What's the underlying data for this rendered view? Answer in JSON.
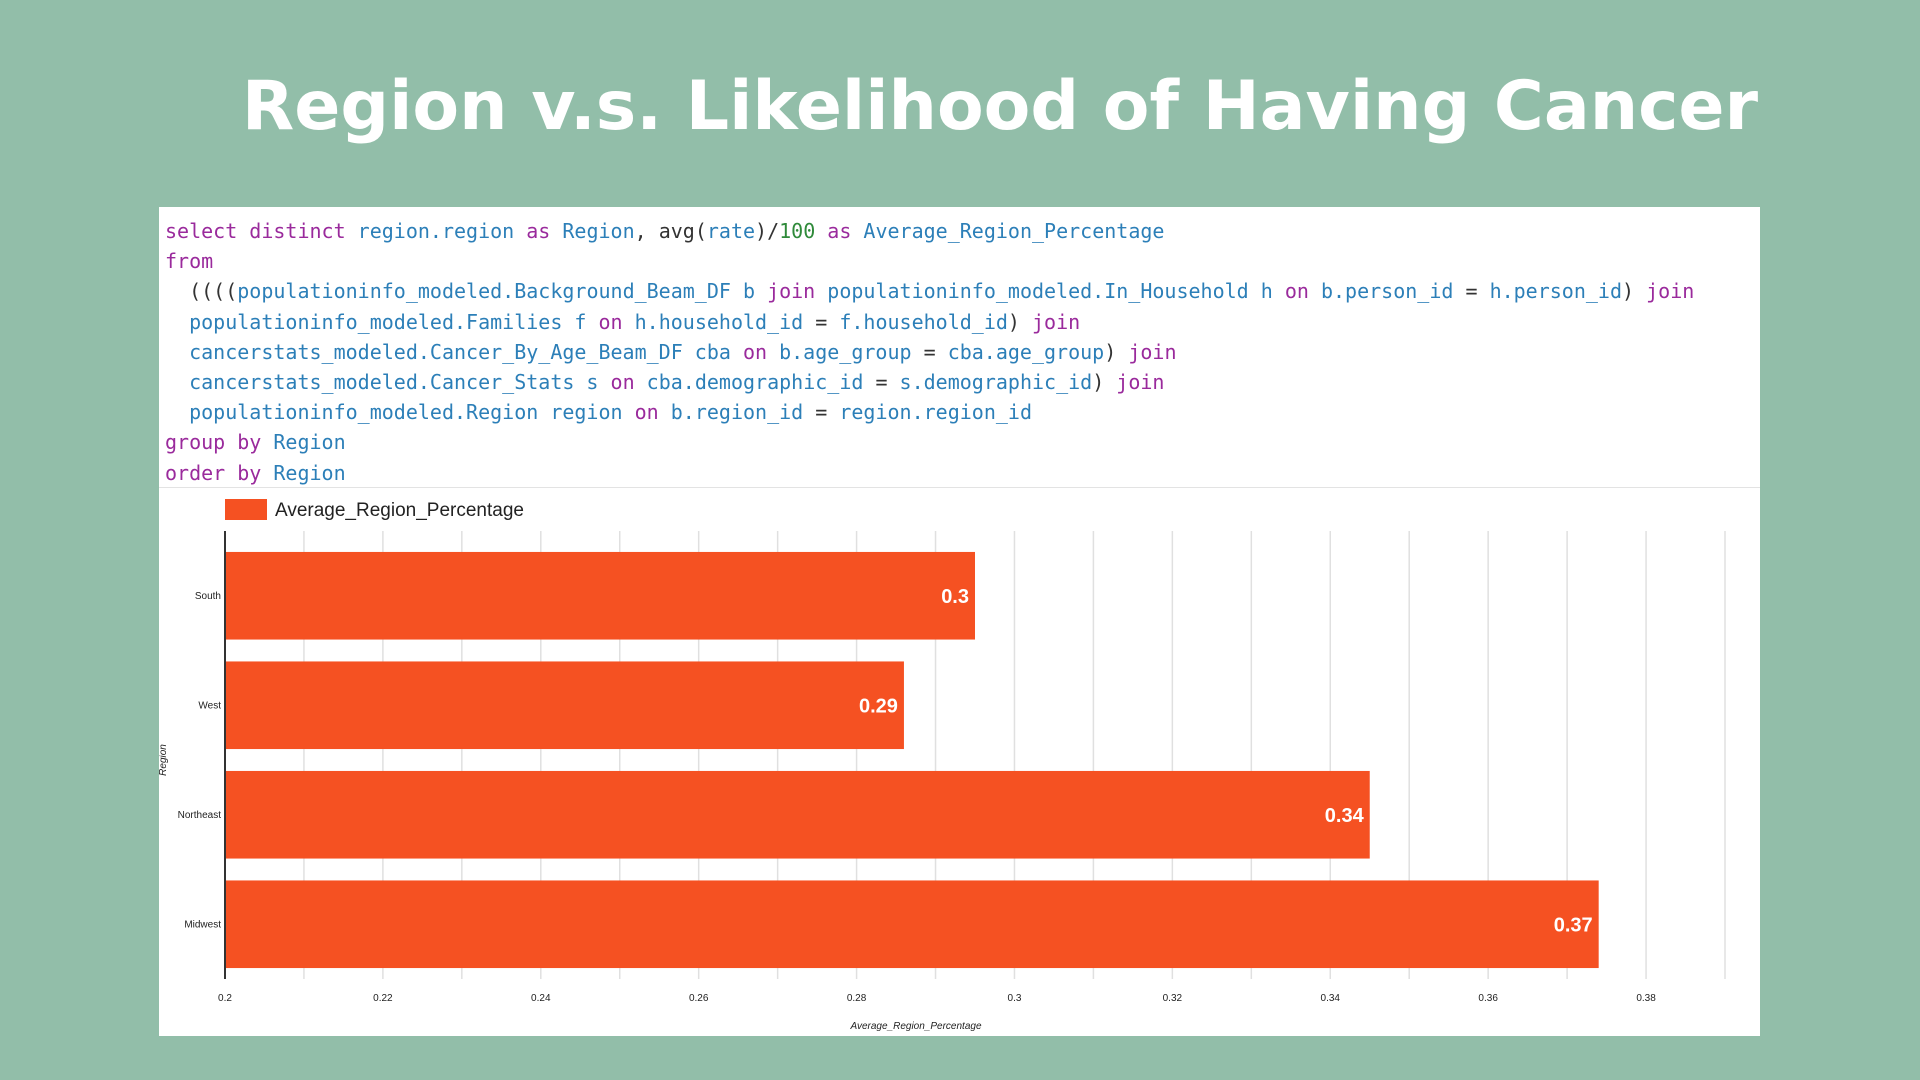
{
  "title": "Region v.s. Likelihood of Having Cancer",
  "colors": {
    "background": "#92bea9",
    "bar": "#f55122",
    "keyword": "#9a2a9c",
    "identifier": "#2c7fb8",
    "number": "#2f8a3a"
  },
  "sql_lines": [
    [
      {
        "t": "select distinct ",
        "c": "kw"
      },
      {
        "t": "region.region ",
        "c": "id"
      },
      {
        "t": "as ",
        "c": "kw"
      },
      {
        "t": "Region",
        "c": "id"
      },
      {
        "t": ", avg(",
        "c": "pl"
      },
      {
        "t": "rate",
        "c": "id"
      },
      {
        "t": ")/",
        "c": "pl"
      },
      {
        "t": "100 ",
        "c": "num"
      },
      {
        "t": "as ",
        "c": "kw"
      },
      {
        "t": "Average_Region_Percentage",
        "c": "id"
      }
    ],
    [
      {
        "t": "from",
        "c": "kw"
      }
    ],
    [
      {
        "t": "  ((((",
        "c": "pl"
      },
      {
        "t": "populationinfo_modeled.Background_Beam_DF b ",
        "c": "id"
      },
      {
        "t": "join ",
        "c": "kw"
      },
      {
        "t": "populationinfo_modeled.In_Household h ",
        "c": "id"
      },
      {
        "t": "on ",
        "c": "kw"
      },
      {
        "t": "b.person_id ",
        "c": "id"
      },
      {
        "t": "= ",
        "c": "pl"
      },
      {
        "t": "h.person_id",
        "c": "id"
      },
      {
        "t": ") ",
        "c": "pl"
      },
      {
        "t": "join",
        "c": "kw"
      }
    ],
    [
      {
        "t": "  populationinfo_modeled.Families f ",
        "c": "id"
      },
      {
        "t": "on ",
        "c": "kw"
      },
      {
        "t": "h.household_id ",
        "c": "id"
      },
      {
        "t": "= ",
        "c": "pl"
      },
      {
        "t": "f.household_id",
        "c": "id"
      },
      {
        "t": ") ",
        "c": "pl"
      },
      {
        "t": "join",
        "c": "kw"
      }
    ],
    [
      {
        "t": "  cancerstats_modeled.Cancer_By_Age_Beam_DF cba ",
        "c": "id"
      },
      {
        "t": "on ",
        "c": "kw"
      },
      {
        "t": "b.age_group ",
        "c": "id"
      },
      {
        "t": "= ",
        "c": "pl"
      },
      {
        "t": "cba.age_group",
        "c": "id"
      },
      {
        "t": ") ",
        "c": "pl"
      },
      {
        "t": "join",
        "c": "kw"
      }
    ],
    [
      {
        "t": "  cancerstats_modeled.Cancer_Stats s ",
        "c": "id"
      },
      {
        "t": "on ",
        "c": "kw"
      },
      {
        "t": "cba.demographic_id ",
        "c": "id"
      },
      {
        "t": "= ",
        "c": "pl"
      },
      {
        "t": "s.demographic_id",
        "c": "id"
      },
      {
        "t": ") ",
        "c": "pl"
      },
      {
        "t": "join",
        "c": "kw"
      }
    ],
    [
      {
        "t": "  populationinfo_modeled.Region region ",
        "c": "id"
      },
      {
        "t": "on ",
        "c": "kw"
      },
      {
        "t": "b.region_id ",
        "c": "id"
      },
      {
        "t": "= ",
        "c": "pl"
      },
      {
        "t": "region.region_id",
        "c": "id"
      }
    ],
    [
      {
        "t": "group by ",
        "c": "kw"
      },
      {
        "t": "Region",
        "c": "id"
      }
    ],
    [
      {
        "t": "order by ",
        "c": "kw"
      },
      {
        "t": "Region",
        "c": "id"
      }
    ]
  ],
  "chart_data": {
    "type": "bar",
    "orientation": "horizontal",
    "categories": [
      "South",
      "West",
      "Northeast",
      "Midwest"
    ],
    "series": [
      {
        "name": "Average_Region_Percentage",
        "values": [
          0.295,
          0.286,
          0.345,
          0.374
        ],
        "labels": [
          "0.3",
          "0.29",
          "0.34",
          "0.37"
        ]
      }
    ],
    "xlabel": "Average_Region_Percentage",
    "ylabel": "Region",
    "xlim": [
      0.2,
      0.39
    ],
    "xticks": [
      0.2,
      0.22,
      0.24,
      0.26,
      0.28,
      0.3,
      0.32,
      0.34,
      0.36,
      0.38
    ],
    "xtick_labels": [
      "0.2",
      "0.22",
      "0.24",
      "0.26",
      "0.28",
      "0.3",
      "0.32",
      "0.34",
      "0.36",
      "0.38"
    ],
    "grid": true,
    "legend": "top-left"
  }
}
